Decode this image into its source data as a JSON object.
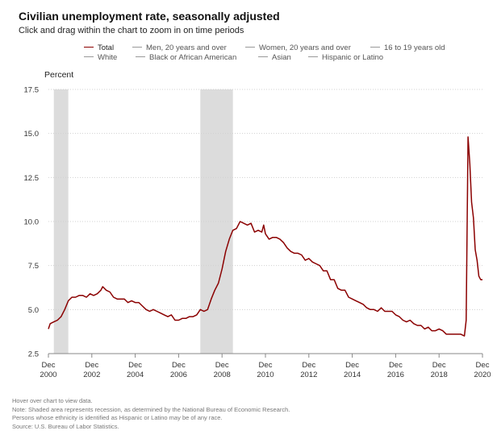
{
  "header": {
    "title": "Civilian unemployment rate, seasonally adjusted",
    "subtitle": "Click and drag within the chart to zoom in on time periods"
  },
  "legend": {
    "rows": [
      [
        {
          "label": "Total",
          "active": true
        },
        {
          "label": "Men, 20 years and over",
          "active": false
        },
        {
          "label": "Women, 20 years and over",
          "active": false
        },
        {
          "label": "16 to 19 years old",
          "active": false
        }
      ],
      [
        {
          "label": "White",
          "active": false
        },
        {
          "label": "Black or African American",
          "active": false
        },
        {
          "label": "Asian",
          "active": false
        },
        {
          "label": "Hispanic or Latino",
          "active": false
        }
      ]
    ]
  },
  "colors": {
    "series": "#8b0000",
    "recession": "#dcdcdc",
    "grid": "#d0d0d0",
    "inactive_swatch": "#999999"
  },
  "footnotes": [
    "Hover over chart to view data.",
    "Note: Shaded area represents recession, as determined by the National Bureau of Economic Research.",
    "Persons whose ethnicity is identified as Hispanic or Latino may be of any race.",
    "Source: U.S. Bureau of Labor Statistics."
  ],
  "chart_data": {
    "type": "line",
    "title": "Civilian unemployment rate, seasonally adjusted",
    "ylabel": "Percent",
    "xlabel": "",
    "ylim": [
      2.5,
      17.5
    ],
    "yticks": [
      "17.5",
      "15.0",
      "12.5",
      "10.0",
      "7.5",
      "5.0",
      "2.5"
    ],
    "xlim": [
      "2000-12",
      "2020-12"
    ],
    "xticks": [
      {
        "date": "2000-12",
        "line1": "Dec",
        "line2": "2000"
      },
      {
        "date": "2002-12",
        "line1": "Dec",
        "line2": "2002"
      },
      {
        "date": "2004-12",
        "line1": "Dec",
        "line2": "2004"
      },
      {
        "date": "2006-12",
        "line1": "Dec",
        "line2": "2006"
      },
      {
        "date": "2008-12",
        "line1": "Dec",
        "line2": "2008"
      },
      {
        "date": "2010-12",
        "line1": "Dec",
        "line2": "2010"
      },
      {
        "date": "2012-12",
        "line1": "Dec",
        "line2": "2012"
      },
      {
        "date": "2014-12",
        "line1": "Dec",
        "line2": "2014"
      },
      {
        "date": "2016-12",
        "line1": "Dec",
        "line2": "2016"
      },
      {
        "date": "2018-12",
        "line1": "Dec",
        "line2": "2018"
      },
      {
        "date": "2020-12",
        "line1": "Dec",
        "line2": "2020"
      }
    ],
    "grid": true,
    "legend_position": "top",
    "recessions": [
      {
        "start": "2001-03",
        "end": "2001-11"
      },
      {
        "start": "2007-12",
        "end": "2009-06"
      }
    ],
    "series": [
      {
        "name": "Total",
        "points": [
          [
            "2000-12",
            3.9
          ],
          [
            "2001-01",
            4.2
          ],
          [
            "2001-03",
            4.3
          ],
          [
            "2001-05",
            4.4
          ],
          [
            "2001-07",
            4.6
          ],
          [
            "2001-09",
            5.0
          ],
          [
            "2001-11",
            5.5
          ],
          [
            "2002-01",
            5.7
          ],
          [
            "2002-03",
            5.7
          ],
          [
            "2002-05",
            5.8
          ],
          [
            "2002-07",
            5.8
          ],
          [
            "2002-09",
            5.7
          ],
          [
            "2002-11",
            5.9
          ],
          [
            "2003-01",
            5.8
          ],
          [
            "2003-03",
            5.9
          ],
          [
            "2003-05",
            6.1
          ],
          [
            "2003-06",
            6.3
          ],
          [
            "2003-08",
            6.1
          ],
          [
            "2003-10",
            6.0
          ],
          [
            "2003-12",
            5.7
          ],
          [
            "2004-02",
            5.6
          ],
          [
            "2004-04",
            5.6
          ],
          [
            "2004-06",
            5.6
          ],
          [
            "2004-08",
            5.4
          ],
          [
            "2004-10",
            5.5
          ],
          [
            "2004-12",
            5.4
          ],
          [
            "2005-02",
            5.4
          ],
          [
            "2005-04",
            5.2
          ],
          [
            "2005-06",
            5.0
          ],
          [
            "2005-08",
            4.9
          ],
          [
            "2005-10",
            5.0
          ],
          [
            "2005-12",
            4.9
          ],
          [
            "2006-02",
            4.8
          ],
          [
            "2006-04",
            4.7
          ],
          [
            "2006-06",
            4.6
          ],
          [
            "2006-08",
            4.7
          ],
          [
            "2006-10",
            4.4
          ],
          [
            "2006-12",
            4.4
          ],
          [
            "2007-02",
            4.5
          ],
          [
            "2007-04",
            4.5
          ],
          [
            "2007-06",
            4.6
          ],
          [
            "2007-08",
            4.6
          ],
          [
            "2007-10",
            4.7
          ],
          [
            "2007-12",
            5.0
          ],
          [
            "2008-02",
            4.9
          ],
          [
            "2008-04",
            5.0
          ],
          [
            "2008-06",
            5.6
          ],
          [
            "2008-08",
            6.1
          ],
          [
            "2008-10",
            6.5
          ],
          [
            "2008-12",
            7.3
          ],
          [
            "2009-02",
            8.3
          ],
          [
            "2009-04",
            9.0
          ],
          [
            "2009-06",
            9.5
          ],
          [
            "2009-08",
            9.6
          ],
          [
            "2009-10",
            10.0
          ],
          [
            "2009-12",
            9.9
          ],
          [
            "2010-02",
            9.8
          ],
          [
            "2010-04",
            9.9
          ],
          [
            "2010-06",
            9.4
          ],
          [
            "2010-08",
            9.5
          ],
          [
            "2010-10",
            9.4
          ],
          [
            "2010-11",
            9.8
          ],
          [
            "2010-12",
            9.3
          ],
          [
            "2011-02",
            9.0
          ],
          [
            "2011-04",
            9.1
          ],
          [
            "2011-06",
            9.1
          ],
          [
            "2011-08",
            9.0
          ],
          [
            "2011-10",
            8.8
          ],
          [
            "2011-12",
            8.5
          ],
          [
            "2012-02",
            8.3
          ],
          [
            "2012-04",
            8.2
          ],
          [
            "2012-06",
            8.2
          ],
          [
            "2012-08",
            8.1
          ],
          [
            "2012-10",
            7.8
          ],
          [
            "2012-12",
            7.9
          ],
          [
            "2013-02",
            7.7
          ],
          [
            "2013-04",
            7.6
          ],
          [
            "2013-06",
            7.5
          ],
          [
            "2013-08",
            7.2
          ],
          [
            "2013-10",
            7.2
          ],
          [
            "2013-12",
            6.7
          ],
          [
            "2014-02",
            6.7
          ],
          [
            "2014-04",
            6.2
          ],
          [
            "2014-06",
            6.1
          ],
          [
            "2014-08",
            6.1
          ],
          [
            "2014-10",
            5.7
          ],
          [
            "2014-12",
            5.6
          ],
          [
            "2015-02",
            5.5
          ],
          [
            "2015-04",
            5.4
          ],
          [
            "2015-06",
            5.3
          ],
          [
            "2015-08",
            5.1
          ],
          [
            "2015-10",
            5.0
          ],
          [
            "2015-12",
            5.0
          ],
          [
            "2016-02",
            4.9
          ],
          [
            "2016-04",
            5.1
          ],
          [
            "2016-06",
            4.9
          ],
          [
            "2016-08",
            4.9
          ],
          [
            "2016-10",
            4.9
          ],
          [
            "2016-12",
            4.7
          ],
          [
            "2017-02",
            4.6
          ],
          [
            "2017-04",
            4.4
          ],
          [
            "2017-06",
            4.3
          ],
          [
            "2017-08",
            4.4
          ],
          [
            "2017-10",
            4.2
          ],
          [
            "2017-12",
            4.1
          ],
          [
            "2018-02",
            4.1
          ],
          [
            "2018-04",
            3.9
          ],
          [
            "2018-06",
            4.0
          ],
          [
            "2018-08",
            3.8
          ],
          [
            "2018-10",
            3.8
          ],
          [
            "2018-12",
            3.9
          ],
          [
            "2019-02",
            3.8
          ],
          [
            "2019-04",
            3.6
          ],
          [
            "2019-06",
            3.6
          ],
          [
            "2019-08",
            3.6
          ],
          [
            "2019-10",
            3.6
          ],
          [
            "2019-12",
            3.6
          ],
          [
            "2020-02",
            3.5
          ],
          [
            "2020-03",
            4.4
          ],
          [
            "2020-04",
            14.8
          ],
          [
            "2020-05",
            13.3
          ],
          [
            "2020-06",
            11.1
          ],
          [
            "2020-07",
            10.2
          ],
          [
            "2020-08",
            8.4
          ],
          [
            "2020-09",
            7.8
          ],
          [
            "2020-10",
            6.9
          ],
          [
            "2020-11",
            6.7
          ],
          [
            "2020-12",
            6.7
          ]
        ]
      }
    ]
  }
}
